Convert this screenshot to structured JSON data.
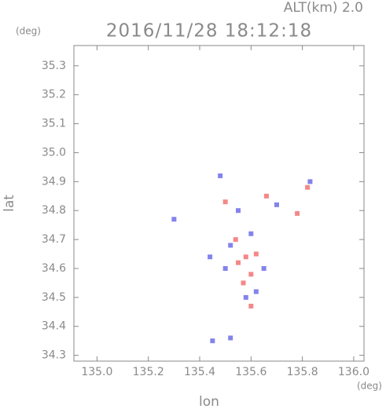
{
  "chart_data": {
    "type": "scatter",
    "title": "2016/11/28 18:12:18",
    "subtitle": "ALT(km) 2.0",
    "y_unit": "(deg)",
    "x_unit": "(deg)",
    "xlabel": "lon",
    "ylabel": "lat",
    "xlim": [
      134.91,
      136.04
    ],
    "ylim": [
      34.28,
      35.37
    ],
    "xticks": [
      {
        "value": 135.0,
        "label": "135.0"
      },
      135.2,
      135.4,
      135.6,
      135.8,
      {
        "value": 136.0,
        "label": "136.0"
      }
    ],
    "yticks": [
      35.3,
      35.2,
      35.1,
      {
        "value": 35.0,
        "label": "35.0"
      },
      34.9,
      34.8,
      34.7,
      34.6,
      34.5,
      34.4,
      34.3
    ],
    "series": [
      {
        "color": "#f06060",
        "x": [
          135.55,
          135.6,
          135.57,
          135.62,
          135.82,
          135.78,
          135.5,
          135.6,
          135.54,
          135.66,
          135.58
        ],
        "y": [
          34.62,
          34.58,
          34.55,
          34.65,
          34.88,
          34.79,
          34.83,
          34.47,
          34.7,
          34.85,
          34.64
        ]
      },
      {
        "color": "#5a5ae6",
        "x": [
          135.5,
          135.58,
          135.52,
          135.65,
          135.48,
          135.55,
          135.7,
          135.45,
          135.52,
          135.3,
          135.83,
          135.6,
          135.44,
          135.62
        ],
        "y": [
          34.6,
          34.5,
          34.68,
          34.6,
          34.92,
          34.8,
          34.82,
          34.35,
          34.36,
          34.77,
          34.9,
          34.72,
          34.64,
          34.52
        ]
      }
    ]
  }
}
